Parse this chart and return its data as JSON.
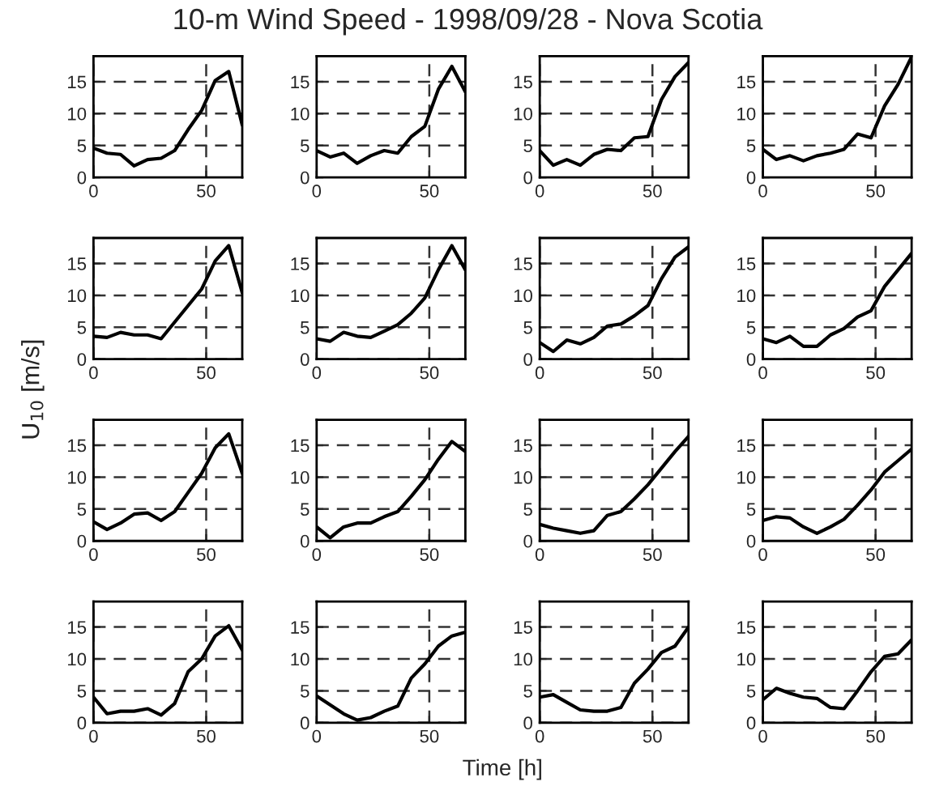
{
  "chart_data": [
    {
      "type": "line",
      "title": "10-m Wind Speed - 1998/09/28 - Nova Scotia",
      "x": [
        0,
        6,
        12,
        18,
        24,
        30,
        36,
        42,
        48,
        54,
        60,
        66
      ],
      "values": [
        4.6,
        3.8,
        3.6,
        1.8,
        2.8,
        3.0,
        4.2,
        7.5,
        10.5,
        15.2,
        16.6,
        8.2
      ],
      "color": "#000000",
      "xlim": [
        0,
        66
      ],
      "ylim": [
        0,
        19
      ],
      "xticks": [
        0,
        50
      ],
      "yticks": [
        0,
        5,
        10,
        15
      ],
      "grid": true
    },
    {
      "type": "line",
      "x": [
        0,
        6,
        12,
        18,
        24,
        30,
        36,
        42,
        48,
        54,
        60,
        66
      ],
      "values": [
        4.2,
        3.2,
        3.8,
        2.2,
        3.4,
        4.2,
        3.8,
        6.4,
        8.0,
        13.8,
        17.4,
        13.4
      ],
      "color": "#000000",
      "xlim": [
        0,
        66
      ],
      "ylim": [
        0,
        19
      ],
      "xticks": [
        0,
        50
      ],
      "yticks": [
        0,
        5,
        10,
        15
      ],
      "grid": true
    },
    {
      "type": "line",
      "x": [
        0,
        6,
        12,
        18,
        24,
        30,
        36,
        42,
        48,
        54,
        60,
        66
      ],
      "values": [
        4.2,
        1.9,
        2.8,
        1.9,
        3.6,
        4.4,
        4.2,
        6.2,
        6.4,
        12.2,
        15.8,
        18.0
      ],
      "color": "#000000",
      "xlim": [
        0,
        66
      ],
      "ylim": [
        0,
        19
      ],
      "xticks": [
        0,
        50
      ],
      "yticks": [
        0,
        5,
        10,
        15
      ],
      "grid": true
    },
    {
      "type": "line",
      "x": [
        0,
        6,
        12,
        18,
        24,
        30,
        36,
        42,
        48,
        54,
        60,
        66
      ],
      "values": [
        4.4,
        2.8,
        3.4,
        2.6,
        3.4,
        3.8,
        4.4,
        6.8,
        6.2,
        11.2,
        14.6,
        18.9
      ],
      "color": "#000000",
      "xlim": [
        0,
        66
      ],
      "ylim": [
        0,
        19
      ],
      "xticks": [
        0,
        50
      ],
      "yticks": [
        0,
        5,
        10,
        15
      ],
      "grid": true
    },
    {
      "type": "line",
      "x": [
        0,
        6,
        12,
        18,
        24,
        30,
        36,
        42,
        48,
        54,
        60,
        66
      ],
      "values": [
        3.6,
        3.4,
        4.2,
        3.8,
        3.8,
        3.2,
        5.8,
        8.4,
        11.0,
        15.4,
        17.8,
        10.4
      ],
      "color": "#000000",
      "xlim": [
        0,
        66
      ],
      "ylim": [
        0,
        19
      ],
      "xticks": [
        0,
        50
      ],
      "yticks": [
        0,
        5,
        10,
        15
      ],
      "grid": true
    },
    {
      "type": "line",
      "x": [
        0,
        6,
        12,
        18,
        24,
        30,
        36,
        42,
        48,
        54,
        60,
        66
      ],
      "values": [
        3.2,
        2.8,
        4.2,
        3.6,
        3.4,
        4.4,
        5.4,
        7.2,
        9.6,
        14.0,
        17.8,
        14.0
      ],
      "color": "#000000",
      "xlim": [
        0,
        66
      ],
      "ylim": [
        0,
        19
      ],
      "xticks": [
        0,
        50
      ],
      "yticks": [
        0,
        5,
        10,
        15
      ],
      "grid": true
    },
    {
      "type": "line",
      "x": [
        0,
        6,
        12,
        18,
        24,
        30,
        36,
        42,
        48,
        54,
        60,
        66
      ],
      "values": [
        2.6,
        1.2,
        3.0,
        2.4,
        3.4,
        5.2,
        5.5,
        6.8,
        8.4,
        12.6,
        16.0,
        17.6
      ],
      "color": "#000000",
      "xlim": [
        0,
        66
      ],
      "ylim": [
        0,
        19
      ],
      "xticks": [
        0,
        50
      ],
      "yticks": [
        0,
        5,
        10,
        15
      ],
      "grid": true
    },
    {
      "type": "line",
      "x": [
        0,
        6,
        12,
        18,
        24,
        30,
        36,
        42,
        48,
        54,
        60,
        66
      ],
      "values": [
        3.2,
        2.6,
        3.6,
        2.0,
        2.0,
        3.8,
        4.8,
        6.6,
        7.6,
        11.4,
        14.0,
        16.6
      ],
      "color": "#000000",
      "xlim": [
        0,
        66
      ],
      "ylim": [
        0,
        19
      ],
      "xticks": [
        0,
        50
      ],
      "yticks": [
        0,
        5,
        10,
        15
      ],
      "grid": true
    },
    {
      "type": "line",
      "ylabel": "U$_{10}$ [m/s]",
      "x": [
        0,
        6,
        12,
        18,
        24,
        30,
        36,
        42,
        48,
        54,
        60,
        66
      ],
      "values": [
        3.0,
        1.8,
        2.8,
        4.2,
        4.4,
        3.2,
        4.6,
        7.6,
        10.6,
        14.6,
        16.8,
        10.6
      ],
      "color": "#000000",
      "xlim": [
        0,
        66
      ],
      "ylim": [
        0,
        19
      ],
      "xticks": [
        0,
        50
      ],
      "yticks": [
        0,
        5,
        10,
        15
      ],
      "grid": true
    },
    {
      "type": "line",
      "x": [
        0,
        6,
        12,
        18,
        24,
        30,
        36,
        42,
        48,
        54,
        60,
        66
      ],
      "values": [
        2.2,
        0.5,
        2.2,
        2.8,
        2.8,
        3.8,
        4.6,
        7.0,
        9.6,
        12.8,
        15.6,
        14.0
      ],
      "color": "#000000",
      "xlim": [
        0,
        66
      ],
      "ylim": [
        0,
        19
      ],
      "xticks": [
        0,
        50
      ],
      "yticks": [
        0,
        5,
        10,
        15
      ],
      "grid": true
    },
    {
      "type": "line",
      "x": [
        0,
        6,
        12,
        18,
        24,
        30,
        36,
        42,
        48,
        54,
        60,
        66
      ],
      "values": [
        2.6,
        2.0,
        1.6,
        1.2,
        1.6,
        4.0,
        4.6,
        6.6,
        8.8,
        11.4,
        14.0,
        16.4
      ],
      "color": "#000000",
      "xlim": [
        0,
        66
      ],
      "ylim": [
        0,
        19
      ],
      "xticks": [
        0,
        50
      ],
      "yticks": [
        0,
        5,
        10,
        15
      ],
      "grid": true
    },
    {
      "type": "line",
      "x": [
        0,
        6,
        12,
        18,
        24,
        30,
        36,
        42,
        48,
        54,
        60,
        66
      ],
      "values": [
        3.2,
        3.8,
        3.6,
        2.2,
        1.2,
        2.2,
        3.4,
        5.6,
        8.0,
        10.8,
        12.6,
        14.4
      ],
      "color": "#000000",
      "xlim": [
        0,
        66
      ],
      "ylim": [
        0,
        19
      ],
      "xticks": [
        0,
        50
      ],
      "yticks": [
        0,
        5,
        10,
        15
      ],
      "grid": true
    },
    {
      "type": "line",
      "x": [
        0,
        6,
        12,
        18,
        24,
        30,
        36,
        42,
        48,
        54,
        60,
        66
      ],
      "values": [
        4.0,
        1.4,
        1.8,
        1.8,
        2.2,
        1.2,
        3.0,
        8.0,
        10.0,
        13.6,
        15.2,
        11.4
      ],
      "color": "#000000",
      "xlim": [
        0,
        66
      ],
      "ylim": [
        0,
        19
      ],
      "xticks": [
        0,
        50
      ],
      "yticks": [
        0,
        5,
        10,
        15
      ],
      "grid": true
    },
    {
      "type": "line",
      "xlabel": "Time [h]",
      "x": [
        0,
        6,
        12,
        18,
        24,
        30,
        36,
        42,
        48,
        54,
        60,
        66
      ],
      "values": [
        4.2,
        2.8,
        1.4,
        0.4,
        0.8,
        1.8,
        2.6,
        7.0,
        9.2,
        12.0,
        13.6,
        14.2
      ],
      "color": "#000000",
      "xlim": [
        0,
        66
      ],
      "ylim": [
        0,
        19
      ],
      "xticks": [
        0,
        50
      ],
      "yticks": [
        0,
        5,
        10,
        15
      ],
      "grid": true
    },
    {
      "type": "line",
      "x": [
        0,
        6,
        12,
        18,
        24,
        30,
        36,
        42,
        48,
        54,
        60,
        66
      ],
      "values": [
        4.0,
        4.4,
        3.2,
        2.0,
        1.8,
        1.8,
        2.4,
        6.2,
        8.4,
        11.0,
        12.0,
        15.0
      ],
      "color": "#000000",
      "xlim": [
        0,
        66
      ],
      "ylim": [
        0,
        19
      ],
      "xticks": [
        0,
        50
      ],
      "yticks": [
        0,
        5,
        10,
        15
      ],
      "grid": true
    },
    {
      "type": "line",
      "x": [
        0,
        6,
        12,
        18,
        24,
        30,
        36,
        42,
        48,
        54,
        60,
        66
      ],
      "values": [
        3.6,
        5.4,
        4.6,
        4.0,
        3.8,
        2.4,
        2.2,
        5.0,
        8.0,
        10.4,
        10.8,
        13.0
      ],
      "color": "#000000",
      "xlim": [
        0,
        66
      ],
      "ylim": [
        0,
        19
      ],
      "xticks": [
        0,
        50
      ],
      "yticks": [
        0,
        5,
        10,
        15
      ],
      "grid": true
    }
  ]
}
